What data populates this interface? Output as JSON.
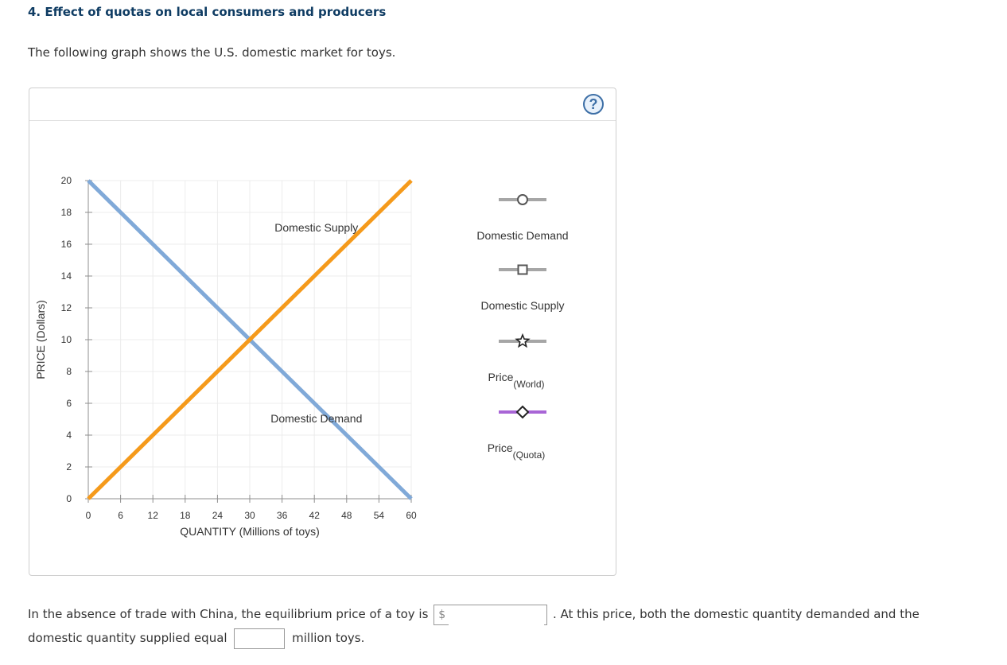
{
  "heading": "4. Effect of quotas on local consumers and producers",
  "intro": "The following graph shows the U.S. domestic market for toys.",
  "help_label": "?",
  "colors": {
    "demand": "#80a9d8",
    "supply": "#f59a1b",
    "grid": "#ececec",
    "axis": "#8f8f8f",
    "legend_gray": "#a6a6a6",
    "legend_purple": "#a865d6"
  },
  "chart_data": {
    "type": "line",
    "xlabel": "QUANTITY (Millions of toys)",
    "ylabel": "PRICE (Dollars)",
    "xlim": [
      0,
      60
    ],
    "ylim": [
      0,
      20
    ],
    "x_ticks": [
      0,
      6,
      12,
      18,
      24,
      30,
      36,
      42,
      48,
      54,
      60
    ],
    "y_ticks": [
      0,
      2,
      4,
      6,
      8,
      10,
      12,
      14,
      16,
      18,
      20
    ],
    "grid": true,
    "series": [
      {
        "name": "Domestic Demand",
        "x": [
          0,
          60
        ],
        "y": [
          20,
          0
        ],
        "label": "Domestic Demand",
        "label_at": [
          48,
          5
        ]
      },
      {
        "name": "Domestic Supply",
        "x": [
          0,
          60
        ],
        "y": [
          0,
          20
        ],
        "label": "Domestic Supply",
        "label_at": [
          48,
          17
        ]
      }
    ],
    "legend": [
      {
        "name": "Domestic Demand",
        "marker": "circle"
      },
      {
        "name": "Domestic Supply",
        "marker": "square"
      },
      {
        "name": "Price",
        "sub": "(World)",
        "marker": "star"
      },
      {
        "name": "Price",
        "sub": "(Quota)",
        "marker": "diamond"
      }
    ]
  },
  "question": {
    "line1_before": "In the absence of trade with China, the equilibrium price of a toy is",
    "currency_symbol": "$",
    "line1_after": ". At this price, both the domestic quantity demanded and the",
    "line2_before": "domestic quantity supplied equal",
    "line2_after": "million toys.",
    "price_value": "",
    "quantity_value": ""
  }
}
